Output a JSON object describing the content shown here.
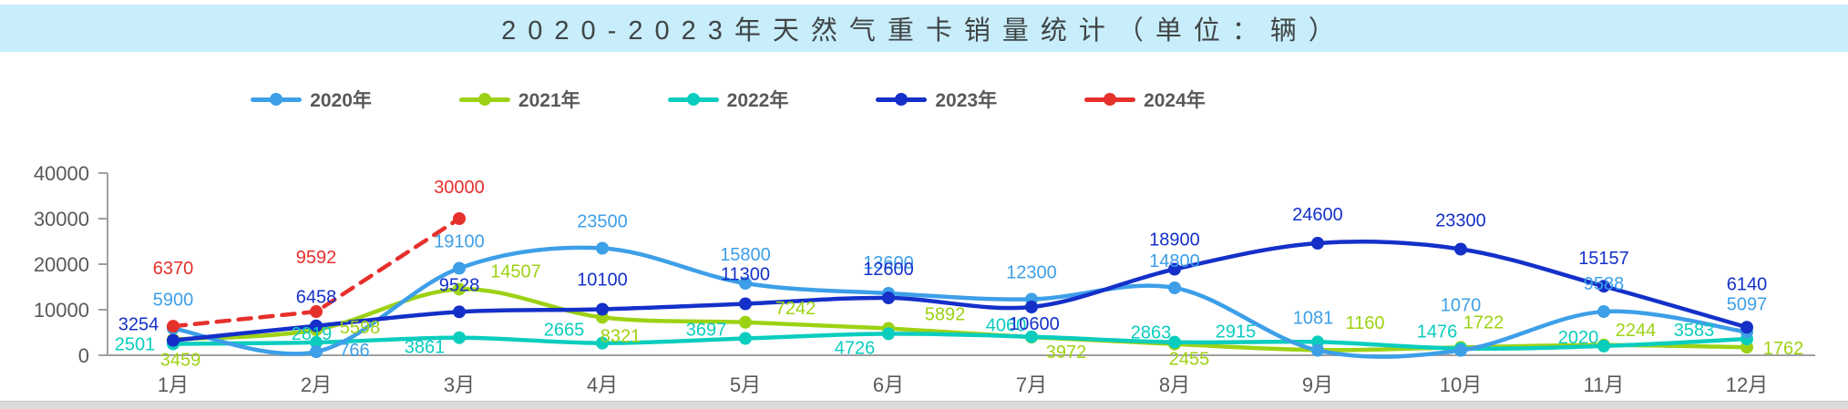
{
  "chart_data": {
    "type": "line",
    "title": "2020-2023年天然气重卡销量统计（单位：辆）",
    "unit": "辆",
    "legend_position": "top",
    "grid": false,
    "value_labels": true,
    "categories": [
      "1月",
      "2月",
      "3月",
      "4月",
      "5月",
      "6月",
      "7月",
      "8月",
      "9月",
      "10月",
      "11月",
      "12月"
    ],
    "y_axis": {
      "min": 0,
      "max": 40000,
      "tick_values": [
        0,
        10000,
        20000,
        30000,
        40000
      ],
      "tick_labels": [
        "0",
        "10000",
        "20000",
        "30000",
        "40000"
      ]
    },
    "series": [
      {
        "name": "2020年",
        "color": "#3d9fe8",
        "line_style": "solid",
        "values": [
          5900,
          766,
          19100,
          23500,
          15800,
          13600,
          12300,
          14800,
          1081,
          1070,
          9588,
          5097
        ]
      },
      {
        "name": "2021年",
        "color": "#9dd214",
        "line_style": "solid",
        "values": [
          3459,
          5598,
          14507,
          8321,
          7242,
          5892,
          3972,
          2455,
          1160,
          1722,
          2244,
          1762
        ]
      },
      {
        "name": "2022年",
        "color": "#0bcdbe",
        "line_style": "solid",
        "values": [
          2501,
          2819,
          3861,
          2665,
          3697,
          4726,
          4060,
          2863,
          2915,
          1476,
          2020,
          3583
        ]
      },
      {
        "name": "2023年",
        "color": "#1430c9",
        "line_style": "solid",
        "values": [
          3254,
          6458,
          9528,
          10100,
          11300,
          12600,
          10600,
          18900,
          24600,
          23300,
          15157,
          6140
        ]
      },
      {
        "name": "2024年",
        "color": "#e6302c",
        "line_style": "dashed",
        "values": [
          6370,
          9592,
          30000
        ]
      }
    ],
    "colors": {
      "title_bar_bg": "#c8edfb",
      "title_text": "#3f4545",
      "axis_text": "#595959",
      "axis_line": "#a0a0a0"
    }
  }
}
